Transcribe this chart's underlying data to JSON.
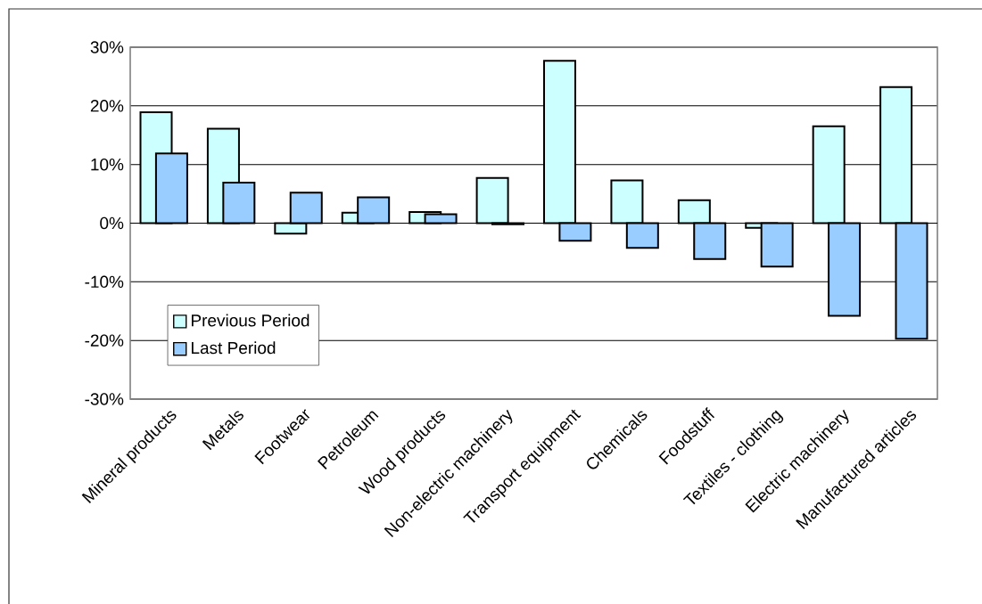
{
  "chart_data": {
    "type": "bar",
    "categories": [
      "Mineral products",
      "Metals",
      "Footwear",
      "Petroleum",
      "Wood products",
      "Non-electric machinery",
      "Transport equipment",
      "Chemicals",
      "Foodstuff",
      "Textiles - clothing",
      "Electric machinery",
      "Manufactured articles"
    ],
    "series": [
      {
        "name": "Previous Period",
        "color": "#ccffff",
        "values": [
          18.9,
          16.1,
          -1.8,
          1.8,
          1.9,
          7.7,
          27.7,
          7.3,
          3.9,
          -0.8,
          16.5,
          23.2
        ]
      },
      {
        "name": "Last Period",
        "color": "#99ccff",
        "values": [
          11.9,
          6.9,
          5.2,
          4.4,
          1.5,
          -0.2,
          -3.0,
          -4.2,
          -6.1,
          -7.4,
          -15.8,
          -19.7
        ]
      }
    ],
    "ylim": [
      -30,
      30
    ],
    "yticks": [
      {
        "value": -30,
        "label": "-30%"
      },
      {
        "value": -20,
        "label": "-20%"
      },
      {
        "value": -10,
        "label": "-10%"
      },
      {
        "value": 0,
        "label": "0%"
      },
      {
        "value": 10,
        "label": "10%"
      },
      {
        "value": 20,
        "label": "20%"
      },
      {
        "value": 30,
        "label": "30%"
      }
    ],
    "grid": "y",
    "legend": "bottom left"
  }
}
